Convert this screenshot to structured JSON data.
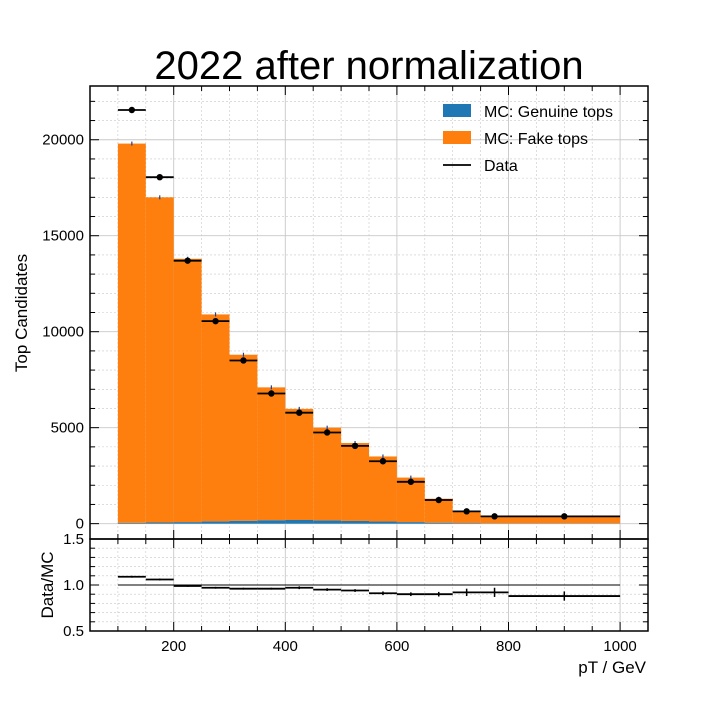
{
  "chart_data": [
    {
      "type": "bar",
      "title": "2022 after normalization",
      "xlabel": "",
      "ylabel": "Top Candidates",
      "xlim": [
        50,
        1050
      ],
      "ylim": [
        -800,
        22800
      ],
      "yticks": [
        "0",
        "5000",
        "10000",
        "15000",
        "20000"
      ],
      "grid": true,
      "legend_position": "top-right",
      "bins": [
        [
          100,
          150
        ],
        [
          150,
          200
        ],
        [
          200,
          250
        ],
        [
          250,
          300
        ],
        [
          300,
          350
        ],
        [
          350,
          400
        ],
        [
          400,
          450
        ],
        [
          450,
          500
        ],
        [
          500,
          550
        ],
        [
          550,
          600
        ],
        [
          600,
          650
        ],
        [
          650,
          700
        ],
        [
          700,
          750
        ],
        [
          750,
          800
        ],
        [
          800,
          1000
        ]
      ],
      "series": [
        {
          "name": "MC: Genuine tops",
          "color": "#1f77b4",
          "values": [
            40,
            60,
            80,
            120,
            150,
            180,
            190,
            170,
            140,
            110,
            80,
            50,
            30,
            15,
            15
          ]
        },
        {
          "name": "MC: Fake tops",
          "color": "#ff7f0e",
          "values": [
            19760,
            16940,
            13720,
            10780,
            8650,
            6920,
            5790,
            4830,
            4060,
            3390,
            2320,
            1250,
            630,
            385,
            385
          ]
        },
        {
          "name": "Data",
          "color": "#000000",
          "values": [
            21550,
            18050,
            13700,
            10550,
            8500,
            6780,
            5780,
            4750,
            4050,
            3250,
            2180,
            1230,
            640,
            380,
            380
          ]
        }
      ]
    },
    {
      "type": "line",
      "xlabel": "pT / GeV",
      "ylabel": "Data/MC",
      "ylim": [
        0.5,
        1.5
      ],
      "yticks": [
        "0.5",
        "1.0",
        "1.5"
      ],
      "xticks": [
        "200",
        "400",
        "600",
        "800",
        "1000"
      ],
      "reference_line": 1.0,
      "bins": [
        [
          100,
          150
        ],
        [
          150,
          200
        ],
        [
          200,
          250
        ],
        [
          250,
          300
        ],
        [
          300,
          350
        ],
        [
          350,
          400
        ],
        [
          400,
          450
        ],
        [
          450,
          500
        ],
        [
          500,
          550
        ],
        [
          550,
          600
        ],
        [
          600,
          650
        ],
        [
          650,
          700
        ],
        [
          700,
          750
        ],
        [
          750,
          800
        ],
        [
          800,
          1000
        ]
      ],
      "values": [
        1.09,
        1.06,
        0.99,
        0.97,
        0.96,
        0.96,
        0.97,
        0.95,
        0.94,
        0.91,
        0.9,
        0.9,
        0.92,
        0.92,
        0.88
      ],
      "errors": [
        0.01,
        0.01,
        0.01,
        0.01,
        0.01,
        0.01,
        0.015,
        0.015,
        0.015,
        0.02,
        0.02,
        0.025,
        0.04,
        0.05,
        0.05
      ]
    }
  ]
}
